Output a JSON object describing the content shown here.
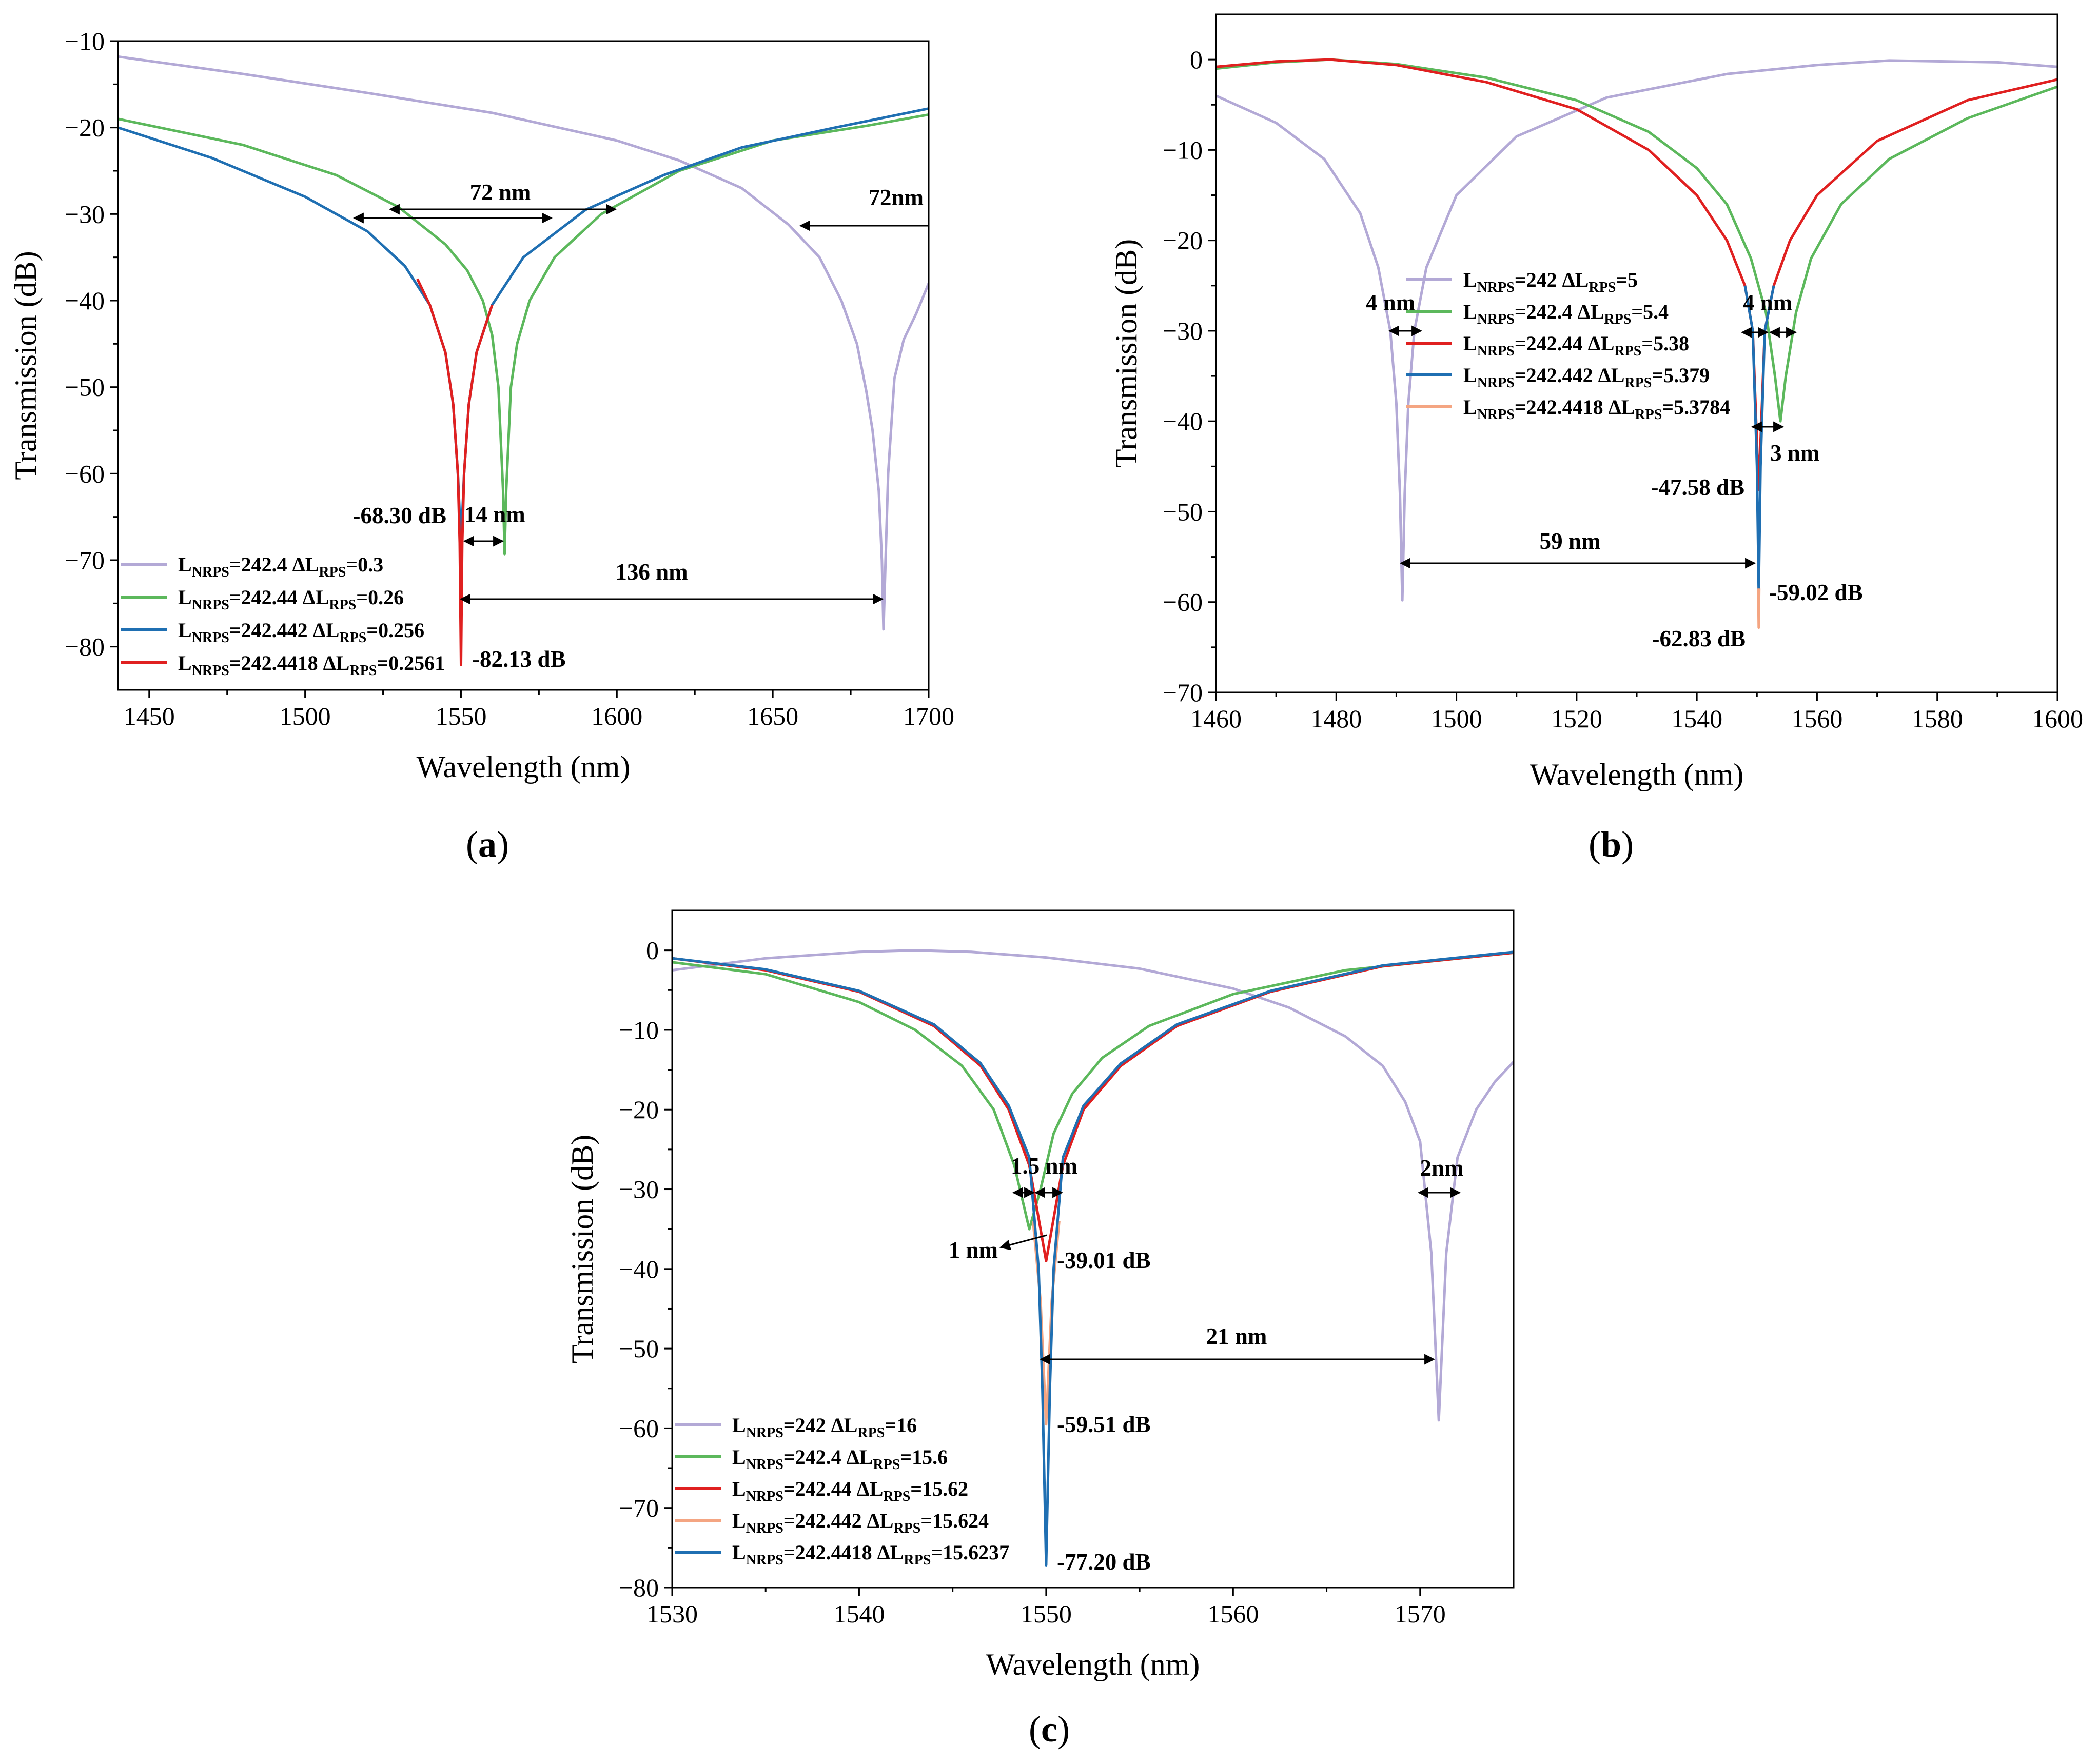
{
  "chart_data": [
    {
      "type": "line",
      "panel_label": "a",
      "xlabel": "Wavelength (nm)",
      "ylabel": "Transmission (dB)",
      "xlim": [
        1440,
        1700
      ],
      "ylim": [
        -85,
        -10
      ],
      "xticks": [
        1450,
        1500,
        1550,
        1600,
        1650,
        1700
      ],
      "yticks": [
        -10,
        -20,
        -30,
        -40,
        -50,
        -60,
        -70,
        -80
      ],
      "xtick_labels": [
        "1450",
        "1500",
        "1550",
        "1600",
        "1650",
        "1700"
      ],
      "ytick_labels": [
        "−10",
        "−20",
        "−30",
        "−40",
        "−50",
        "−60",
        "−70",
        "−80"
      ],
      "legend_placement": "bottom-left",
      "series": [
        {
          "name": "L_NRPS=242.4 ΔL_RPS=0.3",
          "label_main": "L",
          "label_sub": "NRPS",
          "label_val": "=242.4",
          "label_delta": "ΔL",
          "label_sub2": "RPS",
          "label_val2": "=0.3",
          "color": "#b3a9d6",
          "x": [
            1440,
            1480,
            1520,
            1560,
            1600,
            1620,
            1640,
            1655,
            1665,
            1672,
            1677,
            1680,
            1682,
            1684,
            1685,
            1685.5,
            1686,
            1687,
            1689,
            1692,
            1696,
            1700
          ],
          "y": [
            -11.8,
            -13.8,
            -16.0,
            -18.3,
            -21.5,
            -23.8,
            -27.0,
            -31.2,
            -35.0,
            -40.0,
            -45.0,
            -50.5,
            -55.0,
            -62.0,
            -70.0,
            -78.0,
            -72.0,
            -60.0,
            -49.0,
            -44.5,
            -41.5,
            -38.0
          ]
        },
        {
          "name": "L_NRPS=242.44 ΔL_RPS=0.26",
          "label_main": "L",
          "label_sub": "NRPS",
          "label_val": "=242.44",
          "label_delta": "ΔL",
          "label_sub2": "RPS",
          "label_val2": "=0.26",
          "color": "#5cb85c",
          "x": [
            1440,
            1480,
            1510,
            1530,
            1545,
            1552,
            1557,
            1560,
            1562,
            1563.5,
            1564,
            1564.5,
            1566,
            1568,
            1572,
            1580,
            1595,
            1620,
            1650,
            1680,
            1700
          ],
          "y": [
            -19.0,
            -22.0,
            -25.5,
            -29.2,
            -33.5,
            -36.5,
            -40.0,
            -44.0,
            -50.0,
            -62.0,
            -69.3,
            -62.0,
            -50.0,
            -45.0,
            -40.0,
            -35.0,
            -30.0,
            -25.0,
            -21.5,
            -19.8,
            -18.5
          ]
        },
        {
          "name": "L_NRPS=242.442 ΔL_RPS=0.256",
          "label_main": "L",
          "label_sub": "NRPS",
          "label_val": "=242.442",
          "label_delta": "ΔL",
          "label_sub2": "RPS",
          "label_val2": "=0.256",
          "color": "#1f6fb2",
          "x": [
            1440,
            1470,
            1500,
            1520,
            1532,
            1540,
            1545,
            1547.5,
            1549,
            1550,
            1551,
            1552.5,
            1555,
            1560,
            1570,
            1590,
            1615,
            1640,
            1670,
            1700
          ],
          "y": [
            -20.0,
            -23.5,
            -28.0,
            -32.0,
            -36.0,
            -40.5,
            -46.0,
            -52.0,
            -60.0,
            -68.3,
            -60.0,
            -52.0,
            -46.0,
            -40.5,
            -35.0,
            -29.5,
            -25.5,
            -22.3,
            -20.0,
            -17.8
          ]
        },
        {
          "name": "L_NRPS=242.4418 ΔL_RPS=0.2561",
          "label_main": "L",
          "label_sub": "NRPS",
          "label_val": "=242.4418",
          "label_delta": "ΔL",
          "label_sub2": "RPS",
          "label_val2": "=0.2561",
          "color": "#e02020",
          "x": [
            1536,
            1540,
            1545,
            1547.5,
            1549,
            1549.6,
            1550,
            1550.4,
            1551,
            1552.5,
            1555,
            1560
          ],
          "y": [
            -37.5,
            -40.5,
            -46.0,
            -52.0,
            -60.0,
            -68.0,
            -82.13,
            -68.0,
            -60.0,
            -52.0,
            -46.0,
            -40.5
          ]
        }
      ],
      "annotations": [
        {
          "text": "72 nm",
          "type": "label"
        },
        {
          "text": "72nm",
          "type": "label"
        },
        {
          "text": "-68.30 dB",
          "type": "label"
        },
        {
          "text": "14 nm",
          "type": "label"
        },
        {
          "text": "136 nm",
          "type": "label"
        },
        {
          "text": "-82.13 dB",
          "type": "label"
        }
      ]
    },
    {
      "type": "line",
      "panel_label": "b",
      "xlabel": "Wavelength (nm)",
      "ylabel": "Transmission (dB)",
      "xlim": [
        1460,
        1600
      ],
      "ylim": [
        -70,
        5
      ],
      "xticks": [
        1460,
        1480,
        1500,
        1520,
        1540,
        1560,
        1580,
        1600
      ],
      "yticks": [
        0,
        -10,
        -20,
        -30,
        -40,
        -50,
        -60,
        -70
      ],
      "xtick_labels": [
        "1460",
        "1480",
        "1500",
        "1520",
        "1540",
        "1560",
        "1580",
        "1600"
      ],
      "ytick_labels": [
        "0",
        "−10",
        "−20",
        "−30",
        "−40",
        "−50",
        "−60",
        "−70"
      ],
      "legend_placement": "center-left",
      "series": [
        {
          "name": "L_NRPS=242 ΔL_RPS=5",
          "label_main": "L",
          "label_sub": "NRPS",
          "label_val": "=242",
          "label_delta": "ΔL",
          "label_sub2": "RPS",
          "label_val2": "=5",
          "color": "#b3a9d6",
          "x": [
            1460,
            1470,
            1478,
            1484,
            1487,
            1489,
            1490,
            1490.6,
            1491,
            1491.4,
            1492,
            1493,
            1495,
            1500,
            1510,
            1525,
            1545,
            1560,
            1572,
            1590,
            1600
          ],
          "y": [
            -4.0,
            -7.0,
            -11.0,
            -17.0,
            -23.0,
            -30.0,
            -38.0,
            -48.0,
            -59.8,
            -48.0,
            -38.0,
            -30.0,
            -23.0,
            -15.0,
            -8.5,
            -4.2,
            -1.6,
            -0.6,
            -0.1,
            -0.3,
            -0.8
          ]
        },
        {
          "name": "L_NRPS=242.4 ΔL_RPS=5.4",
          "label_main": "L",
          "label_sub": "NRPS",
          "label_val": "=242.4",
          "label_delta": "ΔL",
          "label_sub2": "RPS",
          "label_val2": "=5.4",
          "color": "#5cb85c",
          "x": [
            1460,
            1470,
            1479,
            1490,
            1505,
            1520,
            1532,
            1540,
            1545,
            1549,
            1551.5,
            1553,
            1553.9,
            1554.8,
            1556.5,
            1559,
            1564,
            1572,
            1585,
            1600
          ],
          "y": [
            -1.0,
            -0.3,
            0.0,
            -0.5,
            -2.0,
            -4.5,
            -8.0,
            -12.0,
            -16.0,
            -22.0,
            -28.0,
            -35.0,
            -40.0,
            -35.0,
            -28.0,
            -22.0,
            -16.0,
            -11.0,
            -6.5,
            -3.0
          ]
        },
        {
          "name": "L_NRPS=242.44 ΔL_RPS=5.38",
          "label_main": "L",
          "label_sub": "NRPS",
          "label_val": "=242.44",
          "label_delta": "ΔL",
          "label_sub2": "RPS",
          "label_val2": "=5.38",
          "color": "#e02020",
          "x": [
            1460,
            1470,
            1479,
            1490,
            1505,
            1520,
            1532,
            1540,
            1545,
            1548,
            1549.3,
            1550.3,
            1551.3,
            1552.8,
            1555.5,
            1560,
            1570,
            1585,
            1600
          ],
          "y": [
            -0.8,
            -0.2,
            0.0,
            -0.6,
            -2.5,
            -5.5,
            -10.0,
            -15.0,
            -20.0,
            -25.0,
            -30.0,
            -47.58,
            -30.0,
            -25.0,
            -20.0,
            -15.0,
            -9.0,
            -4.5,
            -2.2
          ]
        },
        {
          "name": "L_NRPS=242.442 ΔL_RPS=5.379",
          "label_main": "L",
          "label_sub": "NRPS",
          "label_val": "=242.442",
          "label_delta": "ΔL",
          "label_sub2": "RPS",
          "label_val2": "=5.379",
          "color": "#1f6fb2",
          "x": [
            1548.0,
            1549.3,
            1550.0,
            1550.3,
            1550.6,
            1551.3,
            1552.8
          ],
          "y": [
            -25.0,
            -30.0,
            -45.0,
            -59.02,
            -45.0,
            -30.0,
            -25.0
          ]
        },
        {
          "name": "L_NRPS=242.4418 ΔL_RPS=5.3784",
          "label_main": "L",
          "label_sub": "NRPS",
          "label_val": "=242.4418",
          "label_delta": "ΔL",
          "label_sub2": "RPS",
          "label_val2": "=5.3784",
          "color": "#f4a582",
          "x": [
            1550.22,
            1550.3,
            1550.38
          ],
          "y": [
            -58.5,
            -62.83,
            -58.5
          ]
        }
      ],
      "annotations": [
        {
          "text": "4 nm",
          "type": "label"
        },
        {
          "text": "4 nm",
          "type": "label"
        },
        {
          "text": "3 nm",
          "type": "label"
        },
        {
          "text": "-47.58 dB",
          "type": "label"
        },
        {
          "text": "59 nm",
          "type": "label"
        },
        {
          "text": "-59.02 dB",
          "type": "label"
        },
        {
          "text": "-62.83 dB",
          "type": "label"
        }
      ]
    },
    {
      "type": "line",
      "panel_label": "c",
      "xlabel": "Wavelength (nm)",
      "ylabel": "Transmission (dB)",
      "xlim": [
        1530,
        1575
      ],
      "ylim": [
        -80,
        5
      ],
      "xticks": [
        1530,
        1540,
        1550,
        1560,
        1570
      ],
      "yticks": [
        0,
        -10,
        -20,
        -30,
        -40,
        -50,
        -60,
        -70,
        -80
      ],
      "xtick_labels": [
        "1530",
        "1540",
        "1550",
        "1560",
        "1570"
      ],
      "ytick_labels": [
        "0",
        "−10",
        "−20",
        "−30",
        "−40",
        "−50",
        "−60",
        "−70",
        "−80"
      ],
      "legend_placement": "bottom-left",
      "series": [
        {
          "name": "L_NRPS=242 ΔL_RPS=16",
          "label_main": "L",
          "label_sub": "NRPS",
          "label_val": "=242",
          "label_delta": "ΔL",
          "label_sub2": "RPS",
          "label_val2": "=16",
          "color": "#b3a9d6",
          "x": [
            1530,
            1535,
            1540,
            1543,
            1546,
            1550,
            1555,
            1560,
            1563,
            1566,
            1568,
            1569.2,
            1570,
            1570.6,
            1571,
            1571.4,
            1572,
            1573,
            1574,
            1575
          ],
          "y": [
            -2.5,
            -1.0,
            -0.2,
            0.0,
            -0.2,
            -0.9,
            -2.3,
            -4.8,
            -7.2,
            -10.8,
            -14.5,
            -19.0,
            -24.0,
            -38.0,
            -59.0,
            -38.0,
            -26.0,
            -20.0,
            -16.5,
            -14.0
          ]
        },
        {
          "name": "L_NRPS=242.4 ΔL_RPS=15.6",
          "label_main": "L",
          "label_sub": "NRPS",
          "label_val": "=242.4",
          "label_delta": "ΔL",
          "label_sub2": "RPS",
          "label_val2": "=15.6",
          "color": "#5cb85c",
          "x": [
            1530,
            1535,
            1540,
            1543,
            1545.5,
            1547.2,
            1548.3,
            1549.1,
            1549.7,
            1550.4,
            1551.4,
            1553,
            1555.5,
            1560,
            1566,
            1575
          ],
          "y": [
            -1.5,
            -3.0,
            -6.5,
            -10.0,
            -14.5,
            -20.0,
            -27.0,
            -35.0,
            -30.0,
            -23.0,
            -18.0,
            -13.5,
            -9.5,
            -5.5,
            -2.5,
            -0.3
          ]
        },
        {
          "name": "L_NRPS=242.44 ΔL_RPS=15.62",
          "label_main": "L",
          "label_sub": "NRPS",
          "label_val": "=242.44",
          "label_delta": "ΔL",
          "label_sub2": "RPS",
          "label_val2": "=15.62",
          "color": "#e02020",
          "x": [
            1530,
            1535,
            1540,
            1544,
            1546.5,
            1548,
            1549.1,
            1550,
            1550.9,
            1552,
            1554,
            1557,
            1562,
            1568,
            1575
          ],
          "y": [
            -1.0,
            -2.5,
            -5.2,
            -9.5,
            -14.5,
            -20.0,
            -27.0,
            -39.01,
            -27.0,
            -20.0,
            -14.5,
            -9.5,
            -5.2,
            -2.0,
            -0.3
          ]
        },
        {
          "name": "L_NRPS=242.442 ΔL_RPS=15.624",
          "label_main": "L",
          "label_sub": "NRPS",
          "label_val": "=242.442",
          "label_delta": "ΔL",
          "label_sub2": "RPS",
          "label_val2": "=15.624",
          "color": "#f4a582",
          "x": [
            1549.3,
            1549.7,
            1550,
            1550.3,
            1550.7
          ],
          "y": [
            -34.0,
            -44.0,
            -59.51,
            -44.0,
            -34.0
          ]
        },
        {
          "name": "L_NRPS=242.4418 ΔL_RPS=15.6237",
          "label_main": "L",
          "label_sub": "NRPS",
          "label_val": "=242.4418",
          "label_delta": "ΔL",
          "label_sub2": "RPS",
          "label_val2": "=15.6237",
          "color": "#1f6fb2",
          "x": [
            1530,
            1535,
            1540,
            1544,
            1546.5,
            1548,
            1549.1,
            1549.6,
            1549.8,
            1550,
            1550.2,
            1550.4,
            1550.9,
            1552,
            1554,
            1557,
            1562,
            1568,
            1575
          ],
          "y": [
            -1.0,
            -2.4,
            -5.1,
            -9.3,
            -14.2,
            -19.5,
            -26.0,
            -40.0,
            -55.0,
            -77.2,
            -55.0,
            -40.0,
            -26.0,
            -19.5,
            -14.2,
            -9.3,
            -5.1,
            -1.9,
            -0.2
          ]
        }
      ],
      "annotations": [
        {
          "text": "1.5 nm",
          "type": "label"
        },
        {
          "text": "2nm",
          "type": "label"
        },
        {
          "text": "1 nm",
          "type": "label"
        },
        {
          "text": "-39.01 dB",
          "type": "label"
        },
        {
          "text": "21 nm",
          "type": "label"
        },
        {
          "text": "-59.51 dB",
          "type": "label"
        },
        {
          "text": "-77.20 dB",
          "type": "label"
        }
      ]
    }
  ]
}
